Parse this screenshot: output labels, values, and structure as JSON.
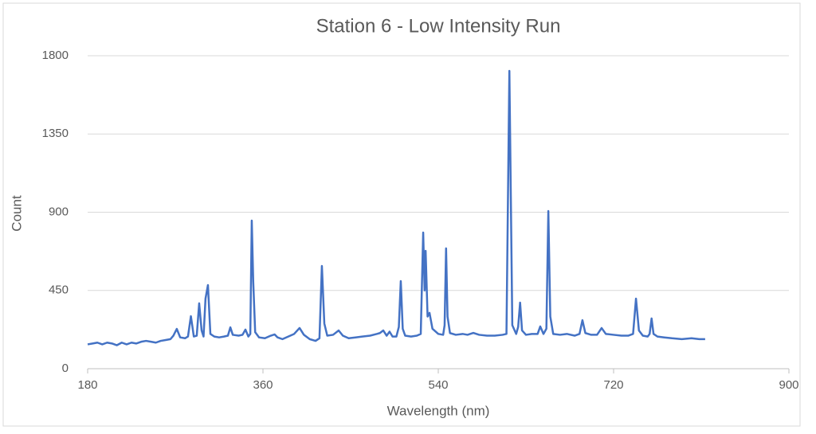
{
  "chart_data": {
    "type": "line",
    "title": "Station 6 - Low Intensity Run",
    "x_label": "Wavelength (nm)",
    "y_label": "Count",
    "x": [
      180,
      185,
      190,
      195,
      200,
      205,
      210,
      215,
      220,
      225,
      230,
      235,
      240,
      245,
      250,
      255,
      260,
      265,
      268,
      271.5,
      275,
      280,
      283,
      286,
      289,
      292,
      294.5,
      297,
      299,
      301,
      303.5,
      306,
      310,
      315,
      320,
      324,
      326.5,
      329,
      335,
      339,
      342,
      345,
      347,
      348.5,
      350,
      352,
      356,
      362,
      368,
      372,
      375,
      380,
      386,
      392,
      397.6,
      402,
      408,
      414,
      418,
      420.5,
      423,
      426,
      432,
      437.7,
      442,
      448,
      455,
      462,
      470,
      477,
      480,
      483.5,
      487,
      490,
      493,
      497,
      499.5,
      501.5,
      503.5,
      506,
      512,
      518,
      522,
      524.5,
      526,
      527,
      529,
      531,
      534,
      540,
      545,
      546.5,
      548,
      549.5,
      552,
      558,
      565,
      570,
      576,
      582,
      590,
      598,
      606,
      610,
      613,
      616,
      620,
      622,
      624,
      626,
      630,
      636,
      642,
      644.7,
      648,
      651,
      653,
      655,
      658,
      665,
      672,
      680,
      685,
      688,
      691,
      697,
      703,
      707.7,
      712,
      720,
      728,
      735,
      740,
      743,
      746,
      750,
      755,
      757,
      759,
      761,
      765,
      772,
      780,
      790,
      800,
      808,
      814
    ],
    "series": [
      {
        "name": "Count",
        "color": "#4472c4",
        "values": [
          140,
          145,
          150,
          140,
          150,
          145,
          135,
          150,
          140,
          150,
          145,
          155,
          160,
          155,
          150,
          160,
          165,
          170,
          190,
          229,
          180,
          175,
          185,
          302,
          185,
          190,
          376,
          220,
          185,
          403,
          481,
          200,
          185,
          180,
          185,
          190,
          238,
          195,
          190,
          195,
          225,
          185,
          200,
          852,
          500,
          210,
          180,
          175,
          190,
          197,
          180,
          170,
          185,
          200,
          234,
          195,
          170,
          160,
          175,
          591,
          260,
          190,
          195,
          220,
          190,
          175,
          180,
          185,
          190,
          200,
          205,
          220,
          190,
          213,
          185,
          185,
          240,
          504,
          230,
          190,
          185,
          190,
          200,
          783,
          450,
          678,
          300,
          321,
          230,
          200,
          195,
          250,
          692,
          300,
          205,
          195,
          200,
          195,
          206,
          195,
          190,
          190,
          195,
          200,
          1713,
          250,
          200,
          240,
          380,
          220,
          195,
          200,
          200,
          243,
          200,
          230,
          907,
          300,
          200,
          195,
          200,
          190,
          200,
          279,
          205,
          195,
          195,
          234,
          200,
          195,
          190,
          190,
          200,
          403,
          220,
          190,
          185,
          200,
          289,
          200,
          185,
          180,
          175,
          170,
          175,
          170,
          170
        ]
      }
    ],
    "xlim": [
      180,
      900
    ],
    "xticks": [
      180,
      360,
      540,
      720,
      900
    ],
    "ylim": [
      0,
      1800
    ],
    "yticks": [
      0,
      450,
      900,
      1350,
      1800
    ],
    "grid": true
  }
}
